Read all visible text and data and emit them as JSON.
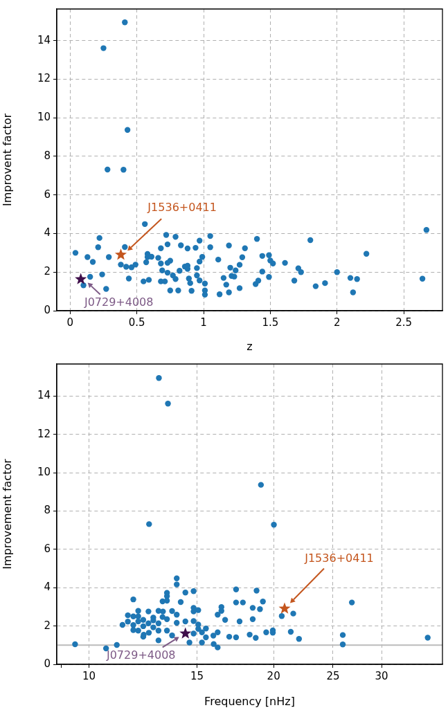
{
  "chart_data": [
    {
      "type": "scatter",
      "xlabel": "z",
      "ylabel": "Improvent factor",
      "xlim": [
        -0.1,
        2.79
      ],
      "ylim": [
        0,
        15.64
      ],
      "xticks": [
        0,
        0.5,
        1,
        1.5,
        2,
        2.5
      ],
      "yticks": [
        0,
        2,
        4,
        6,
        8,
        10,
        12,
        14
      ],
      "grid": true,
      "series": [
        {
          "color": "#1f77b4",
          "marker": "circle",
          "x": [
            0.04,
            0.22,
            0.21,
            0.13,
            0.17,
            0.29,
            0.24,
            0.15,
            0.1,
            0.27,
            0.41,
            0.38,
            0.42,
            0.46,
            0.49,
            0.44,
            0.56,
            0.58,
            0.58,
            0.61,
            0.66,
            0.57,
            0.68,
            0.72,
            0.73,
            0.79,
            0.83,
            0.88,
            0.94,
            0.97,
            1.05,
            1.05,
            0.99,
            0.97,
            0.68,
            0.69,
            0.73,
            0.75,
            0.73,
            0.82,
            0.77,
            0.79,
            0.86,
            0.88,
            0.88,
            0.95,
            0.95,
            0.89,
            0.9,
            0.97,
            1.01,
            1.01,
            1.01,
            0.91,
            0.81,
            0.75,
            0.68,
            0.71,
            0.55,
            0.59,
            1.12,
            1.11,
            1.15,
            1.17,
            1.19,
            1.19,
            1.2,
            1.21,
            1.23,
            1.24,
            1.27,
            1.27,
            1.29,
            1.31,
            1.4,
            1.39,
            1.41,
            1.44,
            1.49,
            1.5,
            1.52,
            1.44,
            1.49,
            1.61,
            1.68,
            1.71,
            1.73,
            1.8,
            1.84,
            1.91,
            2.0,
            2.1,
            2.15,
            2.12,
            2.22,
            2.64,
            2.67,
            0.41,
            0.25,
            0.43,
            0.28,
            0.4
          ],
          "values": [
            3.0,
            3.77,
            3.29,
            2.78,
            2.53,
            2.78,
            1.88,
            1.76,
            1.32,
            1.13,
            3.3,
            2.39,
            2.28,
            2.25,
            2.39,
            1.67,
            4.49,
            2.94,
            2.78,
            2.8,
            2.74,
            2.51,
            3.24,
            3.93,
            3.44,
            3.83,
            3.39,
            3.23,
            3.26,
            3.63,
            3.87,
            3.29,
            2.79,
            2.55,
            2.45,
            2.09,
            2.48,
            2.59,
            1.97,
            2.07,
            1.83,
            1.64,
            2.29,
            2.33,
            2.17,
            2.21,
            1.83,
            1.67,
            1.43,
            1.57,
            1.41,
            1.05,
            0.83,
            1.03,
            1.05,
            1.05,
            1.52,
            1.52,
            1.52,
            1.6,
            0.85,
            2.65,
            1.7,
            1.35,
            0.95,
            3.38,
            2.23,
            1.8,
            1.77,
            2.09,
            2.38,
            1.17,
            2.77,
            3.24,
            3.72,
            1.38,
            1.56,
            2.84,
            2.88,
            2.6,
            2.45,
            2.03,
            1.75,
            2.48,
            1.56,
            2.2,
            2.0,
            3.66,
            1.27,
            1.43,
            2.0,
            1.7,
            1.64,
            0.95,
            2.95,
            1.66,
            4.19,
            14.95,
            13.61,
            9.37,
            7.32,
            7.31
          ]
        },
        {
          "color": "#c4561e",
          "marker": "star",
          "x": [
            0.38
          ],
          "values": [
            2.9
          ]
        },
        {
          "color": "#3f0f4a",
          "marker": "star",
          "x": [
            0.08
          ],
          "values": [
            1.63
          ]
        }
      ],
      "annotations": [
        {
          "text": "J1536+0411",
          "x": 0.43,
          "y": 3.11
        },
        {
          "text": "J0729+4008",
          "x": 0.08,
          "y": 1.63
        }
      ]
    },
    {
      "type": "scatter",
      "xlabel": "Frequency [nHz]",
      "ylabel": "Improvement factor",
      "log": "x",
      "xlim": [
        8.86,
        37.7
      ],
      "ylim": [
        0,
        15.68
      ],
      "xticks": [
        {
          "value": 9,
          "label": null
        },
        10,
        15,
        20,
        25,
        30
      ],
      "yticks": [
        0,
        2,
        4,
        6,
        8,
        10,
        12,
        14
      ],
      "grid": true,
      "ref_lines": [
        {
          "axis": "y",
          "value": 1,
          "color": "#bbbbbb"
        }
      ],
      "series": [
        {
          "color": "#1f77b4",
          "marker": "circle",
          "x": [
            9.49,
            10.66,
            11.1,
            11.34,
            11.57,
            11.57,
            11.81,
            11.81,
            11.81,
            11.81,
            12.03,
            12.03,
            12.03,
            12.03,
            12.26,
            12.26,
            12.28,
            12.26,
            12.5,
            12.5,
            12.52,
            12.73,
            12.73,
            12.73,
            12.98,
            12.98,
            12.98,
            12.98,
            13.18,
            13.2,
            13.18,
            13.4,
            13.4,
            13.4,
            13.4,
            13.4,
            13.66,
            13.66,
            13.9,
            13.9,
            13.9,
            13.9,
            14.11,
            14.36,
            14.36,
            14.58,
            14.81,
            14.81,
            14.81,
            14.81,
            14.81,
            15.07,
            15.07,
            15.07,
            15.28,
            15.28,
            15.51,
            15.51,
            15.95,
            15.97,
            16.21,
            16.21,
            16.21,
            16.44,
            16.44,
            16.67,
            16.93,
            17.37,
            17.37,
            17.37,
            17.6,
            17.82,
            18.28,
            18.49,
            18.49,
            18.7,
            18.76,
            19.0,
            19.21,
            19.45,
            19.94,
            19.94,
            20.62,
            21.53,
            21.33,
            22.0,
            25.93,
            25.93,
            26.83,
            35.67,
            13.0,
            13.45,
            19.07,
            12.53,
            20.02
          ],
          "values": [
            1.05,
            0.83,
            1.01,
            2.06,
            2.56,
            2.23,
            3.39,
            2.5,
            2.05,
            1.79,
            2.79,
            2.5,
            2.24,
            1.76,
            2.32,
            1.99,
            1.55,
            1.44,
            2.76,
            2.14,
            1.65,
            2.44,
            2.29,
            1.93,
            2.79,
            2.14,
            1.76,
            1.25,
            3.29,
            2.76,
            2.47,
            3.73,
            3.56,
            3.32,
            2.36,
            1.76,
            2.78,
            1.51,
            4.49,
            4.17,
            2.59,
            2.17,
            3.25,
            3.75,
            2.24,
            1.14,
            3.82,
            2.95,
            2.76,
            2.26,
            1.61,
            2.83,
            2.08,
            1.85,
            1.14,
            1.67,
            1.87,
            1.41,
            1.5,
            1.06,
            0.88,
            1.67,
            2.59,
            2.99,
            2.79,
            2.32,
            1.44,
            3.91,
            3.23,
            1.41,
            2.24,
            3.23,
            1.55,
            2.95,
            2.36,
            1.38,
            3.85,
            2.88,
            3.28,
            1.67,
            1.77,
            1.65,
            2.52,
            2.65,
            1.7,
            1.33,
            1.53,
            1.04,
            3.23,
            1.39,
            14.95,
            13.61,
            9.37,
            7.32,
            7.29
          ]
        },
        {
          "color": "#c4561e",
          "marker": "star",
          "x": [
            20.84
          ],
          "values": [
            2.91
          ]
        },
        {
          "color": "#3f0f4a",
          "marker": "star",
          "x": [
            14.36
          ],
          "values": [
            1.61
          ]
        }
      ],
      "annotations": [
        "J1536+0411",
        {
          "text": "J0729+4008",
          "x": 14.36,
          "y": 1.61
        }
      ]
    }
  ]
}
